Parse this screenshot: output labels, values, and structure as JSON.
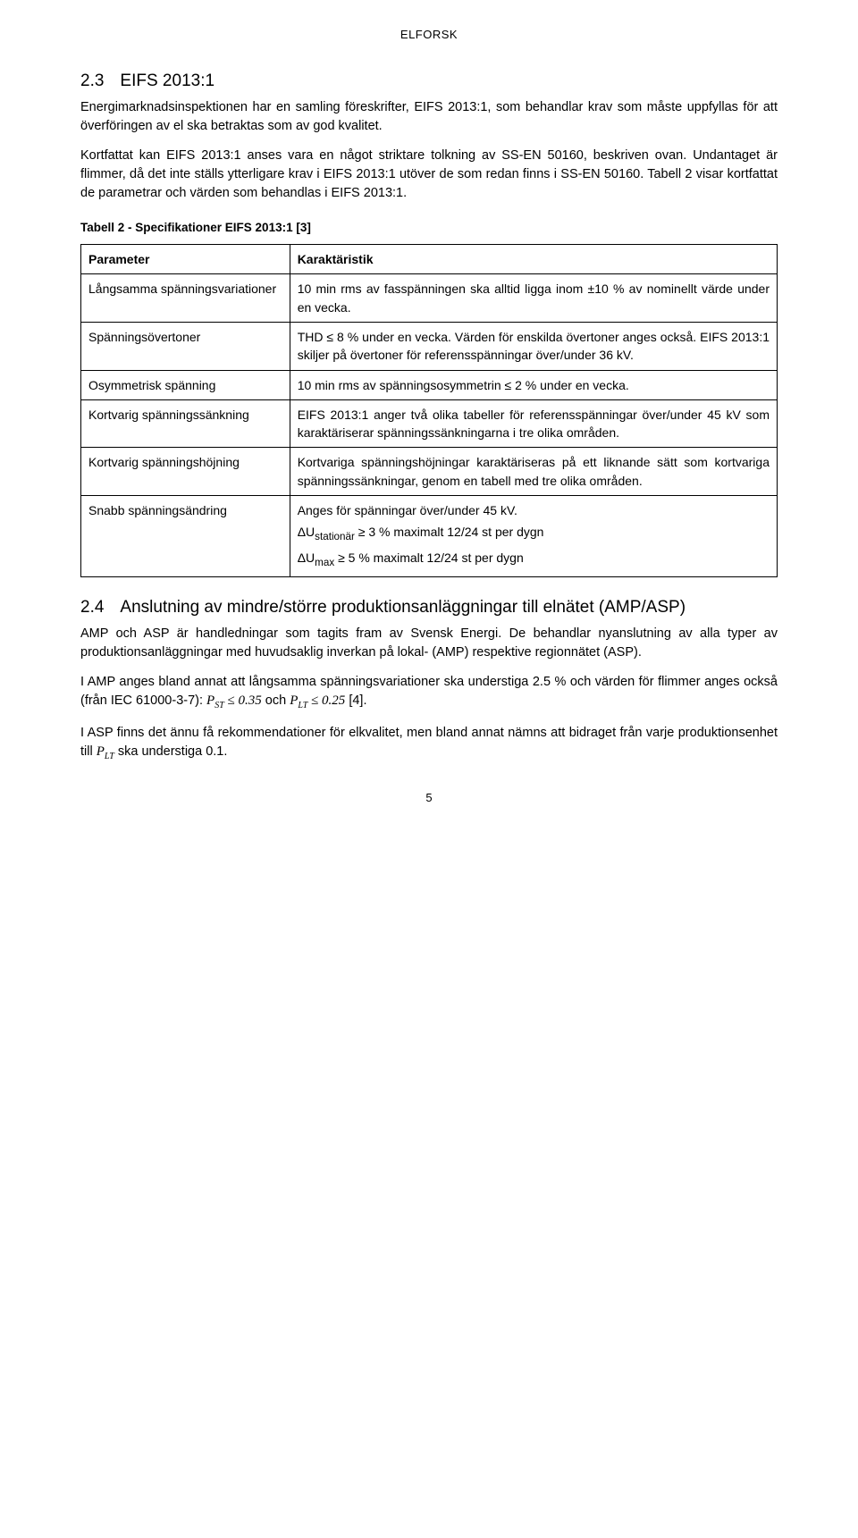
{
  "header": "ELFORSK",
  "section23": {
    "heading_num": "2.3",
    "heading_text": "EIFS 2013:1",
    "p1": "Energimarknadsinspektionen har en samling föreskrifter, EIFS 2013:1, som behandlar krav som måste uppfyllas för att överföringen av el ska betraktas som av god kvalitet.",
    "p2": "Kortfattat kan EIFS 2013:1 anses vara en något striktare tolkning av SS-EN 50160, beskriven ovan. Undantaget är flimmer, då det inte ställs ytterligare krav i EIFS 2013:1 utöver de som redan finns i SS-EN 50160. Tabell 2 visar kortfattat de parametrar och värden som behandlas i EIFS 2013:1."
  },
  "table2": {
    "caption": "Tabell 2 - Specifikationer EIFS 2013:1 [3]",
    "head_param": "Parameter",
    "head_char": "Karaktäristik",
    "rows": [
      {
        "param": "Långsamma spänningsvariationer",
        "char": [
          "10 min rms av fasspänningen ska alltid ligga inom ±10 % av nominellt värde under en vecka."
        ]
      },
      {
        "param": "Spänningsövertoner",
        "char": [
          "THD ≤ 8 % under en vecka. Värden för enskilda övertoner anges också. EIFS 2013:1 skiljer på övertoner för referensspänningar över/under 36 kV."
        ]
      },
      {
        "param": "Osymmetrisk spänning",
        "char": [
          "10 min rms av spänningsosymmetrin ≤ 2 % under en vecka."
        ]
      },
      {
        "param": "Kortvarig spänningssänkning",
        "char": [
          "EIFS 2013:1 anger två olika tabeller för referensspänningar över/under 45 kV som karaktäriserar spänningssänkningarna i tre olika områden."
        ]
      },
      {
        "param": "Kortvarig spänningshöjning",
        "char": [
          "Kortvariga spänningshöjningar karaktäriseras på ett liknande sätt som kortvariga spänningssänkningar, genom en tabell med tre olika områden."
        ]
      },
      {
        "param": "Snabb spänningsändring",
        "char": [
          "Anges för spänningar över/under 45 kV.",
          "ΔU<sub>stationär</sub> ≥ 3 % maximalt 12/24 st per dygn",
          "ΔU<sub>max</sub> ≥ 5 % maximalt 12/24 st per dygn"
        ]
      }
    ]
  },
  "section24": {
    "heading_num": "2.4",
    "heading_text": "Anslutning av mindre/större produktionsanläggningar till elnätet (AMP/ASP)",
    "p1": "AMP och ASP är handledningar som tagits fram av Svensk Energi. De behandlar nyanslutning av alla typer av produktionsanläggningar med huvudsaklig inverkan på lokal- (AMP) respektive regionnätet (ASP).",
    "p2_pre": "I AMP anges bland annat att långsamma spänningsvariationer ska understiga 2.5 % och värden för flimmer anges också (från IEC 61000-3-7): ",
    "p2_f1": "P",
    "p2_f1_sub": "ST",
    "p2_f1_rest": " ≤ 0.35",
    "p2_mid": " och ",
    "p2_f2": "P",
    "p2_f2_sub": "LT",
    "p2_f2_rest": " ≤ 0.25",
    "p2_tail": " [4].",
    "p3_pre": "I ASP finns det ännu få rekommendationer för elkvalitet, men bland annat nämns att bidraget från varje produktionsenhet till ",
    "p3_f": "P",
    "p3_f_sub": "LT",
    "p3_tail": " ska understiga 0.1."
  },
  "page_number": "5"
}
